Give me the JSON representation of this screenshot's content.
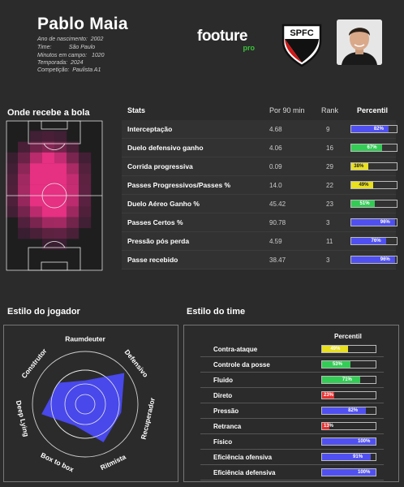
{
  "header": {
    "player_name": "Pablo Maia",
    "info": [
      {
        "label": "Ano de nascimento:",
        "value": "2002"
      },
      {
        "label": "Time:",
        "value": "São Paulo"
      },
      {
        "label": "Minutos em campo:",
        "value": "1020"
      },
      {
        "label": "Temporada:",
        "value": "2024"
      },
      {
        "label": "Competição:",
        "value": "Paulista A1"
      }
    ],
    "logo_main": "footure",
    "logo_sub": "pro",
    "club_badge_text": "SPFC"
  },
  "heatmap": {
    "title": "Onde recebe a bola"
  },
  "stats": {
    "headers": {
      "stat": "Stats",
      "per90": "Por 90 min",
      "rank": "Rank",
      "percentile": "Percentil"
    },
    "rows": [
      {
        "label": "Interceptação",
        "per90": "4.68",
        "rank": "9",
        "percentile": 82,
        "pct_label": "82%",
        "color": "#5050f0"
      },
      {
        "label": "Duelo defensivo ganho",
        "per90": "4.06",
        "rank": "16",
        "percentile": 67,
        "pct_label": "67%",
        "color": "#33cc55"
      },
      {
        "label": "Corrida progressiva",
        "per90": "0.09",
        "rank": "29",
        "percentile": 38,
        "pct_label": "38%",
        "color": "#e8e020"
      },
      {
        "label": "Passes Progressivos/Passes %",
        "per90": "14.0",
        "rank": "22",
        "percentile": 49,
        "pct_label": "49%",
        "color": "#e8e020"
      },
      {
        "label": "Duelo Aéreo Ganho %",
        "per90": "45.42",
        "rank": "23",
        "percentile": 51,
        "pct_label": "51%",
        "color": "#33cc55"
      },
      {
        "label": "Passes Certos %",
        "per90": "90.78",
        "rank": "3",
        "percentile": 96,
        "pct_label": "96%",
        "color": "#5050f0"
      },
      {
        "label": "Pressão pós perda",
        "per90": "4.59",
        "rank": "11",
        "percentile": 76,
        "pct_label": "76%",
        "color": "#5050f0"
      },
      {
        "label": "Passe recebido",
        "per90": "38.47",
        "rank": "3",
        "percentile": 96,
        "pct_label": "96%",
        "color": "#5050f0"
      }
    ]
  },
  "player_style": {
    "title": "Estilo do jogador",
    "axes": [
      "Raumdeuter",
      "Defensivo",
      "Recuperador",
      "Ritmista",
      "Box to box",
      "Deep Lying",
      "Construtor"
    ],
    "values": [
      0.45,
      0.95,
      0.7,
      0.8,
      0.45,
      0.85,
      0.65
    ],
    "fill_color": "#4a4af5"
  },
  "team_style": {
    "title": "Estilo do time",
    "header": "Percentil",
    "rows": [
      {
        "label": "Contra-ataque",
        "percentile": 49,
        "pct_label": "49%",
        "color": "#e8e020"
      },
      {
        "label": "Controle da posse",
        "percentile": 53,
        "pct_label": "53%",
        "color": "#33cc55"
      },
      {
        "label": "Fluido",
        "percentile": 71,
        "pct_label": "71%",
        "color": "#33cc55"
      },
      {
        "label": "Direto",
        "percentile": 23,
        "pct_label": "23%",
        "color": "#e83030"
      },
      {
        "label": "Pressão",
        "percentile": 82,
        "pct_label": "82%",
        "color": "#5050f0"
      },
      {
        "label": "Retranca",
        "percentile": 13,
        "pct_label": "13%",
        "color": "#e83030"
      },
      {
        "label": "Físico",
        "percentile": 100,
        "pct_label": "100%",
        "color": "#5050f0"
      },
      {
        "label": "Eficiência ofensiva",
        "percentile": 91,
        "pct_label": "91%",
        "color": "#5050f0"
      },
      {
        "label": "Eficiência defensiva",
        "percentile": 100,
        "pct_label": "100%",
        "color": "#5050f0"
      }
    ]
  }
}
